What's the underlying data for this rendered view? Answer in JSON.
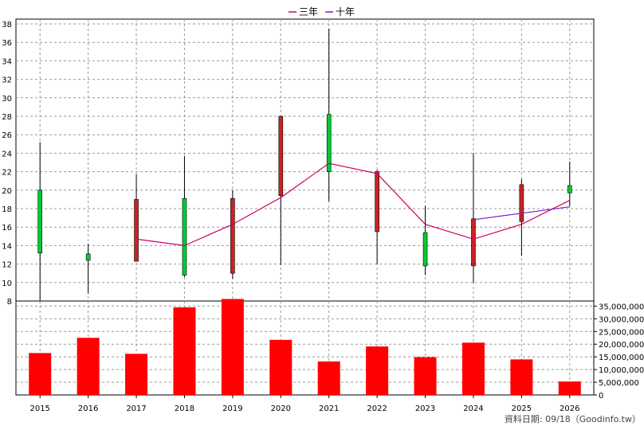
{
  "chart_data": {
    "type": "candlestick",
    "categories": [
      "2015",
      "2016",
      "2017",
      "2018",
      "2019",
      "2020",
      "2021",
      "2022",
      "2023",
      "2024",
      "2025",
      "2026"
    ],
    "price": {
      "ylim": [
        8,
        38
      ],
      "yticks": [
        8,
        10,
        12,
        14,
        16,
        18,
        20,
        22,
        24,
        26,
        28,
        30,
        32,
        34,
        36,
        38
      ],
      "candles": [
        {
          "open": 13.2,
          "close": 20.0,
          "high": 25.2,
          "low": 8.0
        },
        {
          "open": 12.4,
          "close": 13.1,
          "high": 14.2,
          "low": 8.8
        },
        {
          "open": 19.0,
          "close": 12.3,
          "high": 21.7,
          "low": 12.3
        },
        {
          "open": 10.8,
          "close": 19.1,
          "high": 23.7,
          "low": 10.6
        },
        {
          "open": 19.1,
          "close": 11.0,
          "high": 20.0,
          "low": 10.4
        },
        {
          "open": 28.0,
          "close": 19.4,
          "high": 28.0,
          "low": 11.9
        },
        {
          "open": 22.0,
          "close": 28.2,
          "high": 37.5,
          "low": 18.8
        },
        {
          "open": 22.0,
          "close": 15.5,
          "high": 22.2,
          "low": 12.0
        },
        {
          "open": 11.8,
          "close": 15.4,
          "high": 18.3,
          "low": 10.8
        },
        {
          "open": 16.9,
          "close": 11.8,
          "high": 24.0,
          "low": 10.0
        },
        {
          "open": 20.6,
          "close": 16.6,
          "high": 21.2,
          "low": 12.9
        },
        {
          "open": 19.7,
          "close": 20.5,
          "high": 23.1,
          "low": 18.3
        }
      ]
    },
    "volume": {
      "ylim": [
        0,
        37000000
      ],
      "yticks": [
        0,
        5000000,
        10000000,
        15000000,
        20000000,
        25000000,
        30000000,
        35000000
      ],
      "ytick_labels": [
        "0",
        "5,000,000",
        "10,000,000",
        "15,000,000",
        "20,000,000",
        "25,000,000",
        "30,000,000",
        "35,000,000"
      ],
      "values": [
        16500000,
        22500000,
        16200000,
        34500000,
        37800000,
        21700000,
        13200000,
        19100000,
        14900000,
        20600000,
        14000000,
        5300000
      ]
    },
    "series": [
      {
        "name": "三年",
        "color": "#cc0066",
        "values": [
          null,
          null,
          14.7,
          14.0,
          16.3,
          19.2,
          22.9,
          21.8,
          16.3,
          14.7,
          16.3,
          18.9
        ]
      },
      {
        "name": "十年",
        "color": "#7a1fcc",
        "values": [
          null,
          null,
          null,
          null,
          null,
          null,
          null,
          null,
          null,
          16.8,
          17.5,
          18.2
        ]
      }
    ],
    "legend": {
      "placement": "top-center"
    },
    "grid": true,
    "colors": {
      "up": "#00cc33",
      "down": "#cc2222",
      "volume": "#ff0000",
      "wick": "#000000"
    }
  },
  "footer": {
    "source_text": "資料日期: 09/18（Goodinfo.tw）"
  }
}
